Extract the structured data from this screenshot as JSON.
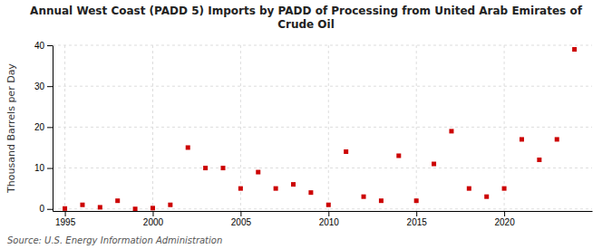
{
  "chart_data": {
    "type": "scatter",
    "title": "Annual West Coast (PADD 5) Imports by PADD of Processing from United Arab Emirates of\nCrude Oil",
    "y_label": "Thousand Barrels per Day",
    "source": "Source: U.S. Energy Information Administration",
    "x": [
      1995,
      1996,
      1997,
      1998,
      1999,
      2000,
      2001,
      2002,
      2003,
      2004,
      2005,
      2006,
      2007,
      2008,
      2009,
      2010,
      2011,
      2012,
      2013,
      2014,
      2015,
      2016,
      2017,
      2018,
      2019,
      2020,
      2021,
      2022,
      2023,
      2024
    ],
    "values": [
      0.1,
      1.0,
      0.4,
      2.0,
      0.0,
      0.2,
      1.0,
      15.0,
      10.0,
      10.0,
      5.0,
      9.0,
      5.0,
      6.0,
      4.0,
      1.0,
      14.0,
      3.0,
      2.0,
      13.0,
      2.0,
      11.0,
      19.0,
      5.0,
      3.0,
      5.0,
      17.0,
      12.0,
      17.0,
      39.0
    ],
    "color": "#cc0000",
    "marker": "square",
    "xlim": [
      1994.3,
      2025.0
    ],
    "ylim": [
      -0.5,
      40
    ],
    "xticks": [
      1995,
      2000,
      2005,
      2010,
      2015,
      2020
    ],
    "yticks": [
      0,
      10,
      20,
      30,
      40
    ],
    "grid": true
  }
}
